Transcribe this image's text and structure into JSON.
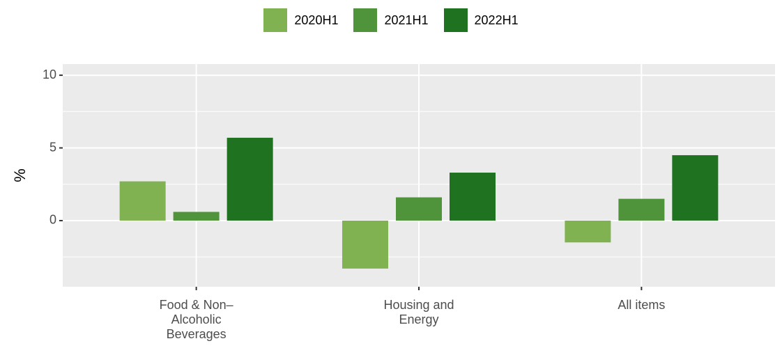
{
  "chart_data": {
    "type": "bar",
    "ylabel": "%",
    "categories": [
      "Food & Non–\nAlcoholic\nBeverages",
      "Housing and\nEnergy",
      "All items"
    ],
    "series": [
      {
        "name": "2020H1",
        "color": "#80b251",
        "values": [
          2.7,
          -3.3,
          -1.5
        ]
      },
      {
        "name": "2021H1",
        "color": "#4f943a",
        "values": [
          0.6,
          1.6,
          1.5
        ]
      },
      {
        "name": "2022H1",
        "color": "#1f721f",
        "values": [
          5.7,
          3.3,
          4.5
        ]
      }
    ],
    "ylim": [
      -4.55,
      10.77
    ],
    "yticks": [
      0,
      5,
      10
    ],
    "minor_yticks": [
      -2.5,
      2.5,
      7.5
    ],
    "grid": true,
    "legend": "top"
  }
}
